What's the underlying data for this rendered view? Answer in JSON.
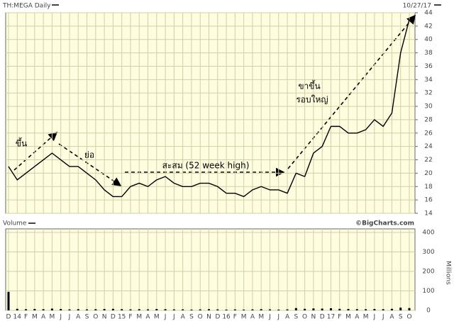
{
  "chart_data": {
    "type": "line",
    "title": "TH:MEGA Daily",
    "date": "10/27/17",
    "volume_title": "Volume",
    "source": "©BigCharts.com",
    "y2_label": "Millions",
    "categories": [
      "D",
      "14",
      "F",
      "M",
      "A",
      "M",
      "J",
      "J",
      "A",
      "S",
      "O",
      "N",
      "D",
      "15",
      "F",
      "M",
      "A",
      "M",
      "J",
      "J",
      "A",
      "S",
      "O",
      "N",
      "D",
      "16",
      "F",
      "M",
      "A",
      "M",
      "J",
      "J",
      "A",
      "S",
      "O",
      "N",
      "D",
      "17",
      "F",
      "M",
      "A",
      "M",
      "J",
      "J",
      "A",
      "S",
      "O"
    ],
    "values": [
      21,
      19,
      20,
      21,
      22,
      23,
      22,
      21,
      21,
      20,
      19,
      17.5,
      16.5,
      16.5,
      18,
      18.5,
      18,
      19,
      19.5,
      18.5,
      18,
      18,
      18.5,
      18.5,
      18,
      17,
      17,
      16.5,
      17.5,
      18,
      17.5,
      17.5,
      17,
      20,
      19.5,
      23,
      24,
      27,
      27,
      26,
      26,
      26.5,
      28,
      27,
      29,
      38,
      43
    ],
    "volume": [
      95,
      8,
      6,
      7,
      6,
      9,
      7,
      5,
      6,
      5,
      6,
      7,
      8,
      6,
      5,
      6,
      5,
      7,
      6,
      5,
      5,
      4,
      5,
      6,
      5,
      4,
      5,
      4,
      5,
      6,
      5,
      4,
      5,
      12,
      8,
      10,
      9,
      11,
      8,
      7,
      6,
      6,
      7,
      6,
      8,
      14,
      12
    ],
    "color": "#000000",
    "volume_color": "#000000",
    "ylim": [
      14,
      44
    ],
    "yticks": [
      14,
      16,
      18,
      20,
      22,
      24,
      26,
      28,
      30,
      32,
      34,
      36,
      38,
      40,
      42,
      44
    ],
    "y2lim": [
      0,
      400
    ],
    "y2ticks": [
      0,
      100,
      200,
      300,
      400
    ],
    "grid": true,
    "annotations": [
      "ขึ้น",
      "ย่อ",
      "สะสม (52 week high)",
      "ขาขึ้น",
      "รอบใหญ่"
    ]
  }
}
